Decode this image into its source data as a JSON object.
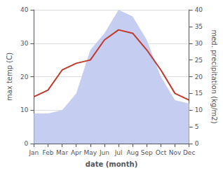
{
  "chart_data": {
    "type": "line",
    "categories": [
      "Jan",
      "Feb",
      "Mar",
      "Apr",
      "May",
      "Jun",
      "Jul",
      "Aug",
      "Sep",
      "Oct",
      "Nov",
      "Dec"
    ],
    "xlabel": "date (month)",
    "ylabel": "max temp (C)",
    "y2label": "med. precipitation (kg/m2)",
    "ylim": [
      0,
      40
    ],
    "yticks": [
      0,
      10,
      20,
      30,
      40
    ],
    "y2lim": [
      0,
      40
    ],
    "y2ticks": [
      0,
      5,
      10,
      15,
      20,
      25,
      30,
      35,
      40
    ],
    "grid": true,
    "series": [
      {
        "type": "area",
        "axis": "y2",
        "color": "#c5cef0",
        "values": [
          9,
          9,
          10,
          15,
          28,
          33,
          40,
          38,
          31,
          20,
          13,
          12
        ]
      },
      {
        "type": "line",
        "color": "#c0392b",
        "values": [
          14,
          16,
          22,
          24,
          25,
          31,
          34,
          33,
          28,
          22,
          15,
          13
        ]
      }
    ]
  }
}
